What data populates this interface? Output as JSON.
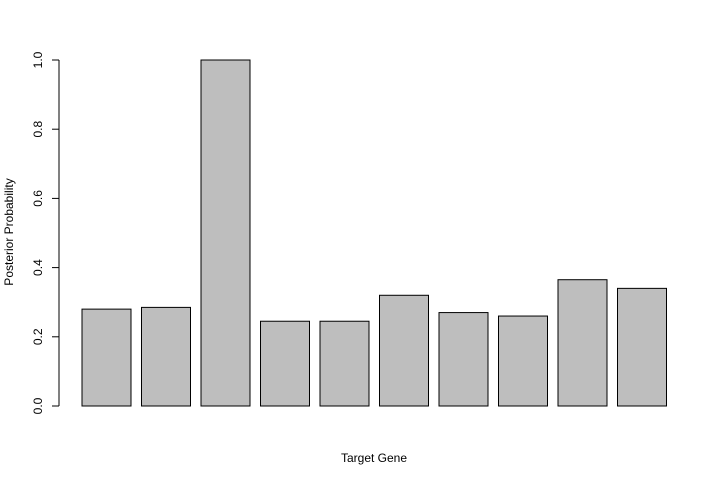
{
  "chart_data": {
    "type": "bar",
    "title": "",
    "xlabel": "Target Gene",
    "ylabel": "Posterior Probability",
    "categories": [
      "",
      "",
      "",
      "",
      "",
      "",
      "",
      "",
      "",
      ""
    ],
    "values": [
      0.28,
      0.285,
      1.0,
      0.245,
      0.245,
      0.32,
      0.27,
      0.26,
      0.365,
      0.34
    ],
    "ylim": [
      0,
      1
    ],
    "yticks": [
      {
        "value": 0.0,
        "label": "0.0"
      },
      {
        "value": 0.2,
        "label": "0.2"
      },
      {
        "value": 0.4,
        "label": "0.4"
      },
      {
        "value": 0.6,
        "label": "0.6"
      },
      {
        "value": 0.8,
        "label": "0.8"
      },
      {
        "value": 1.0,
        "label": "1.0"
      }
    ],
    "grid": false,
    "legend": "none",
    "colors": {
      "bar_fill": "#bebebe",
      "bar_stroke": "#000000",
      "axis": "#000000",
      "background": "#ffffff"
    }
  }
}
